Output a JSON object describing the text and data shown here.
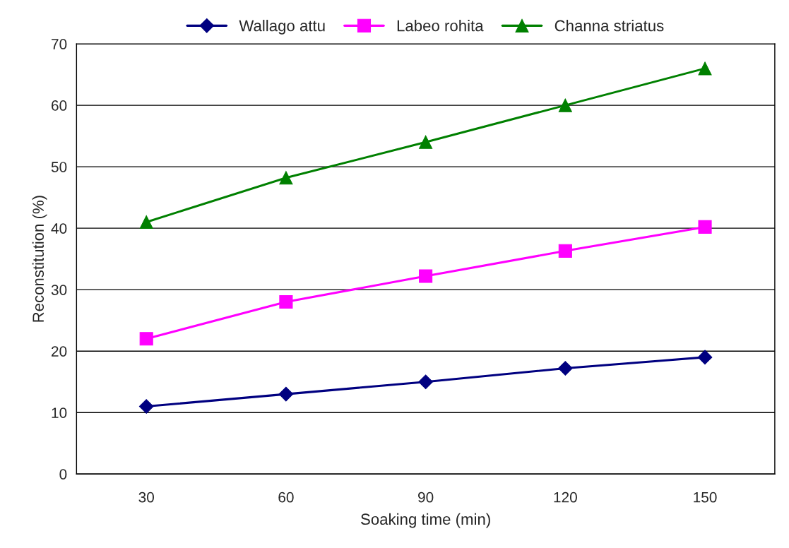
{
  "chart_data": {
    "type": "line",
    "xlabel": "Soaking time (min)",
    "ylabel": "Reconstitution (%)",
    "categories": [
      "30",
      "60",
      "90",
      "120",
      "150"
    ],
    "series": [
      {
        "name": "Wallago attu",
        "color": "#000080",
        "marker": "diamond",
        "values": [
          11,
          13,
          15,
          17.2,
          19
        ]
      },
      {
        "name": "Labeo rohita",
        "color": "#ff00ff",
        "marker": "square",
        "values": [
          22,
          28,
          32.2,
          36.3,
          40.2
        ]
      },
      {
        "name": "Channa striatus",
        "color": "#008000",
        "marker": "triangle",
        "values": [
          41,
          48.2,
          54,
          60,
          66
        ]
      }
    ],
    "ylim": [
      0,
      70
    ],
    "yticks": [
      0,
      10,
      20,
      30,
      40,
      50,
      60,
      70
    ],
    "grid": "y",
    "legend": "top",
    "line_style": "solid"
  }
}
